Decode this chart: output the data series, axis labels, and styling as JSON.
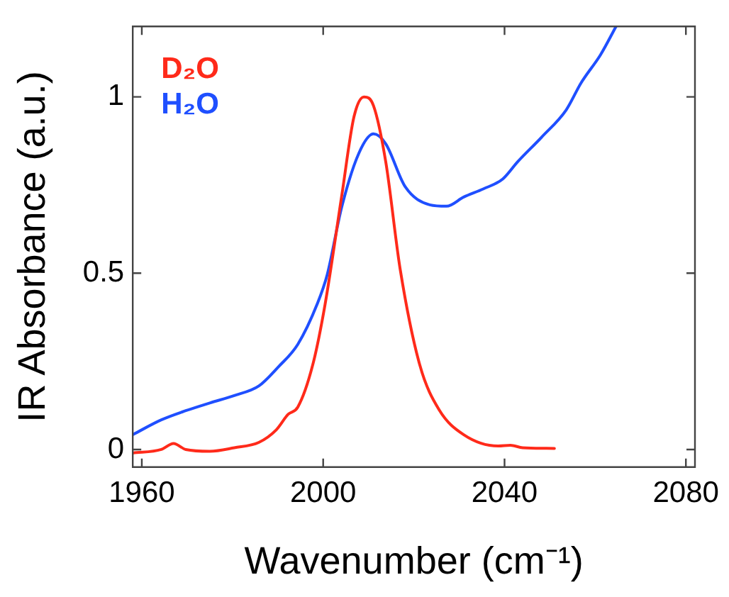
{
  "chart_data": {
    "type": "line",
    "xlabel": "Wavenumber (cm⁻¹)",
    "ylabel": "IR Absorbance (a.u.)",
    "xlim": [
      1958,
      2082
    ],
    "ylim": [
      -0.05,
      1.2
    ],
    "xticks": [
      1960,
      2000,
      2040,
      2080
    ],
    "yticks": [
      0,
      0.5,
      1
    ],
    "grid": false,
    "legend": "top left",
    "marker": "none",
    "line_style": "solid",
    "series": [
      {
        "name": "D₂O",
        "color": "#ff2a1a",
        "x": [
          1958,
          1964.3,
          1967,
          1969.7,
          1975,
          1980.4,
          1985.8,
          1989.6,
          1992.3,
          1994.4,
          1997.7,
          2000.4,
          2004.1,
          2006.8,
          2009,
          2011.1,
          2013.8,
          2017,
          2021.3,
          2025.6,
          2031,
          2038.6,
          2041.3,
          2044,
          2051
        ],
        "values": [
          -0.01,
          0,
          0.017,
          0,
          -0.005,
          0.005,
          0.02,
          0.055,
          0.1,
          0.12,
          0.24,
          0.41,
          0.72,
          0.944,
          1.0,
          0.975,
          0.816,
          0.51,
          0.24,
          0.112,
          0.042,
          0.01,
          0.012,
          0.005,
          0.003
        ]
      },
      {
        "name": "H₂O",
        "color": "#1f4fff",
        "x": [
          1958,
          1964.3,
          1969.7,
          1975,
          1980.4,
          1985.8,
          1990.1,
          1994.4,
          1998.7,
          2000.9,
          2004.1,
          2007.9,
          2011.1,
          2013.8,
          2018.1,
          2023.5,
          2027.2,
          2031,
          2035.3,
          2039.6,
          2042.9,
          2048.2,
          2053.6,
          2056.9,
          2061.2,
          2064.6
        ],
        "values": [
          0.042,
          0.084,
          0.11,
          0.132,
          0.153,
          0.18,
          0.234,
          0.298,
          0.413,
          0.496,
          0.688,
          0.841,
          0.895,
          0.867,
          0.745,
          0.694,
          0.69,
          0.716,
          0.739,
          0.767,
          0.816,
          0.886,
          0.963,
          1.04,
          1.12,
          1.2
        ]
      }
    ]
  }
}
